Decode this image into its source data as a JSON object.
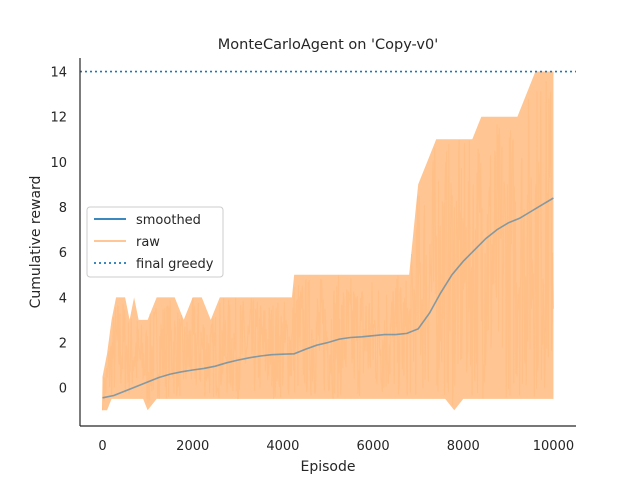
{
  "chart_data": {
    "type": "line",
    "title": "MonteCarloAgent on 'Copy-v0'",
    "xlabel": "Episode",
    "ylabel": "Cumulative reward",
    "xlim": [
      -500,
      10500
    ],
    "ylim": [
      -1.7,
      14.6
    ],
    "xticks": [
      0,
      2000,
      4000,
      6000,
      8000,
      10000
    ],
    "yticks": [
      0,
      2,
      4,
      6,
      8,
      10,
      12,
      14
    ],
    "grid": false,
    "legend_position": "center-left",
    "series": [
      {
        "name": "smoothed",
        "color": "#1f77b4",
        "x": [
          0,
          250,
          500,
          750,
          1000,
          1250,
          1500,
          1750,
          2000,
          2250,
          2500,
          2750,
          3000,
          3250,
          3500,
          3750,
          4000,
          4250,
          4500,
          4750,
          5000,
          5250,
          5500,
          5750,
          6000,
          6250,
          6500,
          6750,
          7000,
          7250,
          7500,
          7750,
          8000,
          8250,
          8500,
          8750,
          9000,
          9250,
          9500,
          9750,
          10000
        ],
        "y": [
          -0.45,
          -0.35,
          -0.15,
          0.05,
          0.25,
          0.45,
          0.6,
          0.7,
          0.78,
          0.85,
          0.95,
          1.1,
          1.22,
          1.32,
          1.4,
          1.46,
          1.48,
          1.5,
          1.7,
          1.88,
          2.0,
          2.15,
          2.22,
          2.25,
          2.3,
          2.35,
          2.35,
          2.4,
          2.6,
          3.3,
          4.2,
          5.0,
          5.6,
          6.1,
          6.6,
          7.0,
          7.3,
          7.5,
          7.8,
          8.1,
          8.4
        ]
      },
      {
        "name": "raw",
        "color": "#ffbf86",
        "envelope": {
          "x": [
            0,
            100,
            200,
            300,
            400,
            500,
            600,
            700,
            800,
            900,
            1000,
            1200,
            1400,
            1600,
            1800,
            2000,
            2200,
            2400,
            2600,
            2800,
            3000,
            3200,
            3400,
            3600,
            3800,
            4000,
            4200,
            4250,
            4400,
            4600,
            4800,
            5000,
            5200,
            5400,
            5600,
            5800,
            6000,
            6200,
            6400,
            6600,
            6800,
            6900,
            7000,
            7200,
            7400,
            7600,
            7800,
            8000,
            8200,
            8400,
            8600,
            8800,
            9000,
            9200,
            9400,
            9600,
            9800,
            10000
          ],
          "upper": [
            0.5,
            1.5,
            3.0,
            4.0,
            4.0,
            4.0,
            3.0,
            4.0,
            3.0,
            3.0,
            3.0,
            4.0,
            4.0,
            4.0,
            3.0,
            4.0,
            4.0,
            3.0,
            4.0,
            4.0,
            4.0,
            4.0,
            4.0,
            4.0,
            4.0,
            4.0,
            4.0,
            5.0,
            5.0,
            5.0,
            5.0,
            5.0,
            5.0,
            5.0,
            5.0,
            5.0,
            5.0,
            5.0,
            5.0,
            5.0,
            5.0,
            7.0,
            9.0,
            10.0,
            11.0,
            11.0,
            11.0,
            11.0,
            11.0,
            12.0,
            12.0,
            12.0,
            12.0,
            12.0,
            13.0,
            14.0,
            14.0,
            14.0
          ],
          "lower": [
            -1.0,
            -1.0,
            -0.5,
            -0.5,
            -0.5,
            -0.5,
            -0.5,
            -0.5,
            -0.5,
            -0.5,
            -1.0,
            -0.5,
            -0.5,
            -0.5,
            -0.5,
            -0.5,
            -0.5,
            -0.5,
            -0.5,
            -0.5,
            -0.5,
            -0.5,
            -0.5,
            -0.5,
            -0.5,
            -0.5,
            -0.5,
            -0.5,
            -0.5,
            -0.5,
            -0.5,
            -0.5,
            -0.5,
            -0.5,
            -0.5,
            -0.5,
            -0.5,
            -0.5,
            -0.5,
            -0.5,
            -0.5,
            -0.5,
            -0.5,
            -0.5,
            -0.5,
            -0.5,
            -1.0,
            -0.5,
            -0.5,
            -0.5,
            -0.5,
            -0.5,
            -0.5,
            -0.5,
            -0.5,
            -0.5,
            -0.5,
            -0.5
          ]
        }
      },
      {
        "name": "final greedy",
        "color": "#1f77b4",
        "style": "dotted",
        "y": 14
      }
    ]
  }
}
